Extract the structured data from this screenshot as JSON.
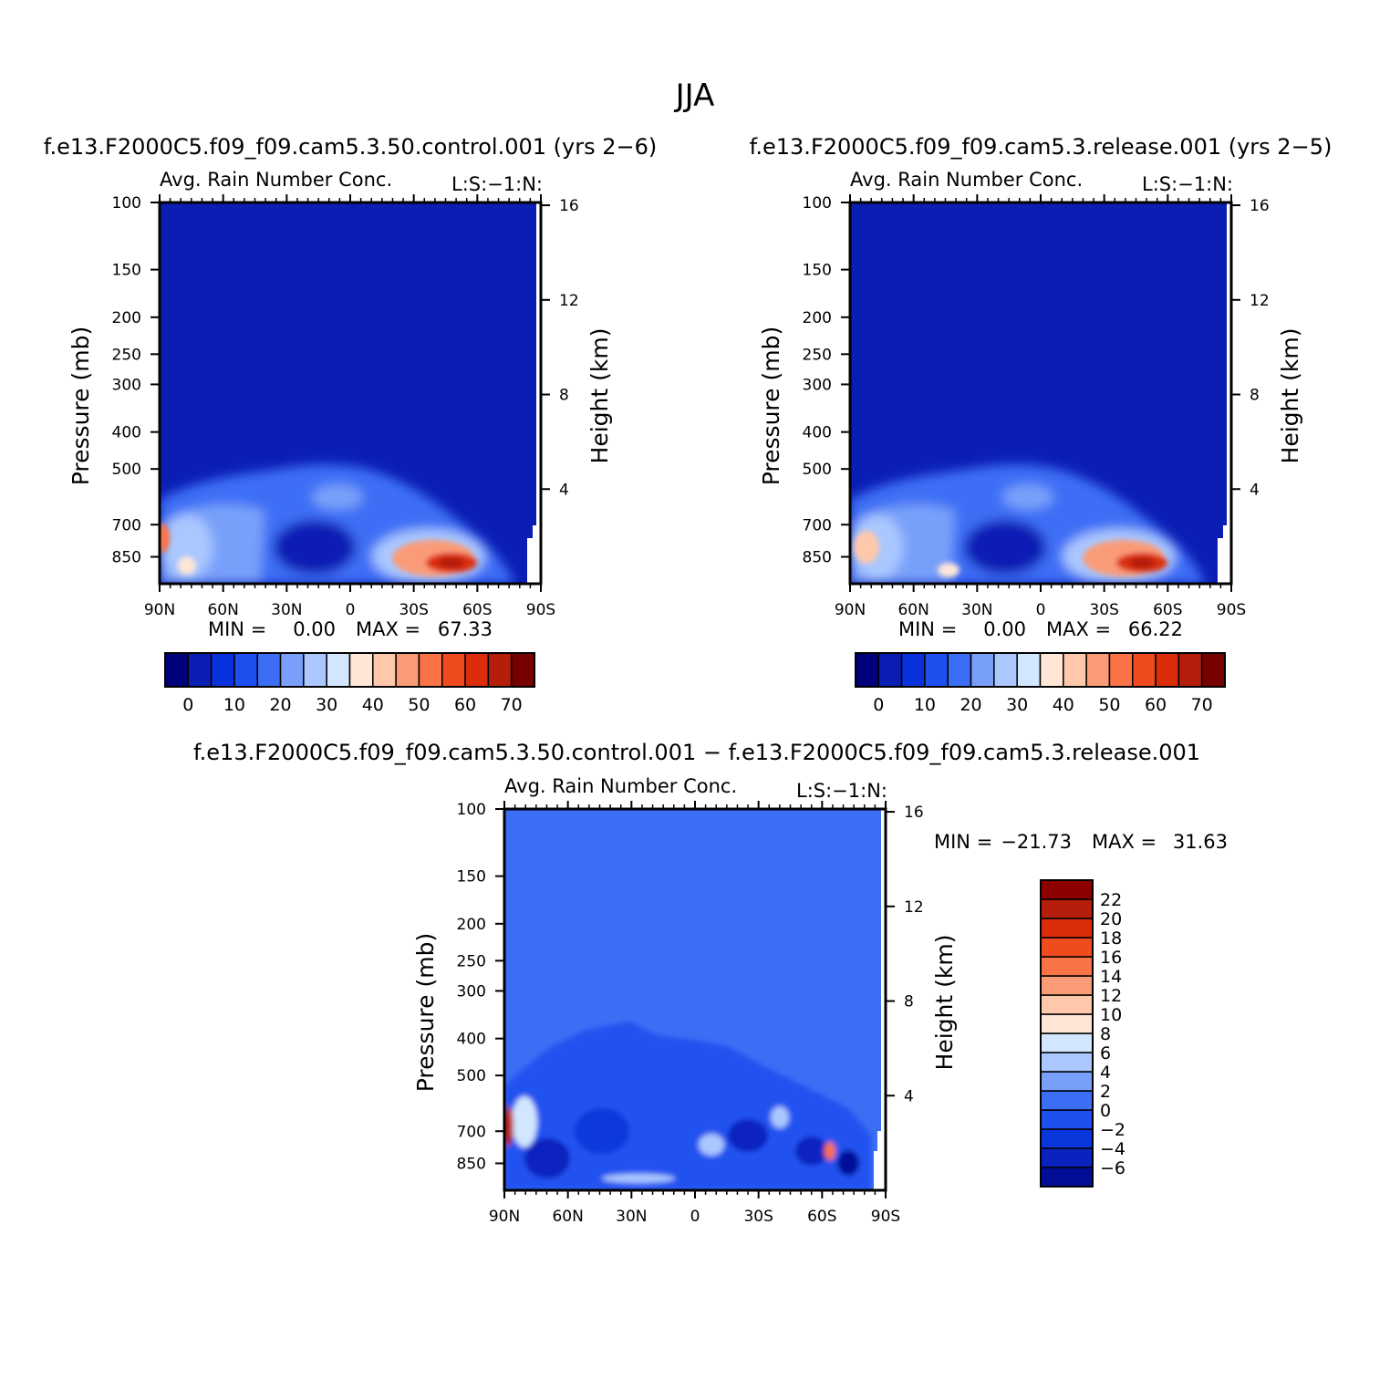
{
  "figure": {
    "title": "JJA",
    "colors": {
      "abs_palette": [
        "#00007a",
        "#0a1eb4",
        "#0a32dc",
        "#1e50f0",
        "#3c6ef5",
        "#78a0fa",
        "#aac8ff",
        "#d2e6ff",
        "#ffe6d7",
        "#ffc8aa",
        "#fa9b78",
        "#fa7346",
        "#f04b1e",
        "#dc2d0a",
        "#b41e0a",
        "#780000"
      ],
      "diff_palette": [
        "#000f96",
        "#0a23be",
        "#0a37dc",
        "#1e50f0",
        "#3c6ef5",
        "#78a0fa",
        "#aac8ff",
        "#d2e6ff",
        "#ffe6d7",
        "#ffc8aa",
        "#fa9b78",
        "#fa7346",
        "#f04b1e",
        "#dc2d0a",
        "#b41e0a",
        "#8c0000"
      ]
    }
  },
  "chart_data": [
    {
      "type": "heatmap",
      "id": "control",
      "run_title": "f.e13.F2000C5.f09_f09.cam5.3.50.control.001 (yrs 2−6)",
      "title": "Avg. Rain Number Conc.",
      "units_label": "L:S:−1:N:",
      "xlabel": "",
      "ylabel": "Pressure (mb)",
      "ylabel_right": "Height (km)",
      "xticks": [
        "90N",
        "60N",
        "30N",
        "0",
        "30S",
        "60S",
        "90S"
      ],
      "yticks": [
        100,
        150,
        200,
        250,
        300,
        400,
        500,
        700,
        850
      ],
      "yticks_right": [
        16,
        12,
        8,
        4
      ],
      "min_label": "MIN =",
      "min_value": "0.00",
      "max_label": "MAX =",
      "max_value": "67.33",
      "colorbar_ticks": [
        "0",
        "10",
        "20",
        "30",
        "40",
        "50",
        "60",
        "70"
      ],
      "grid": false
    },
    {
      "type": "heatmap",
      "id": "release",
      "run_title": "f.e13.F2000C5.f09_f09.cam5.3.release.001 (yrs 2−5)",
      "title": "Avg. Rain Number Conc.",
      "units_label": "L:S:−1:N:",
      "xlabel": "",
      "ylabel": "Pressure (mb)",
      "ylabel_right": "Height (km)",
      "xticks": [
        "90N",
        "60N",
        "30N",
        "0",
        "30S",
        "60S",
        "90S"
      ],
      "yticks": [
        100,
        150,
        200,
        250,
        300,
        400,
        500,
        700,
        850
      ],
      "yticks_right": [
        16,
        12,
        8,
        4
      ],
      "min_label": "MIN =",
      "min_value": "0.00",
      "max_label": "MAX =",
      "max_value": "66.22",
      "colorbar_ticks": [
        "0",
        "10",
        "20",
        "30",
        "40",
        "50",
        "60",
        "70"
      ],
      "grid": false
    },
    {
      "type": "heatmap",
      "id": "difference",
      "run_title": "f.e13.F2000C5.f09_f09.cam5.3.50.control.001 − f.e13.F2000C5.f09_f09.cam5.3.release.001",
      "title": "Avg. Rain Number Conc.",
      "units_label": "L:S:−1:N:",
      "xlabel": "",
      "ylabel": "Pressure (mb)",
      "ylabel_right": "Height (km)",
      "xticks": [
        "90N",
        "60N",
        "30N",
        "0",
        "30S",
        "60S",
        "90S"
      ],
      "yticks": [
        100,
        150,
        200,
        250,
        300,
        400,
        500,
        700,
        850
      ],
      "yticks_right": [
        16,
        12,
        8,
        4
      ],
      "min_label": "MIN =",
      "min_value": "−21.73",
      "max_label": "MAX =",
      "max_value": "31.63",
      "colorbar_ticks": [
        "22",
        "20",
        "18",
        "16",
        "14",
        "12",
        "10",
        "8",
        "6",
        "4",
        "2",
        "0",
        "−2",
        "−4",
        "−6"
      ],
      "grid": false
    }
  ]
}
